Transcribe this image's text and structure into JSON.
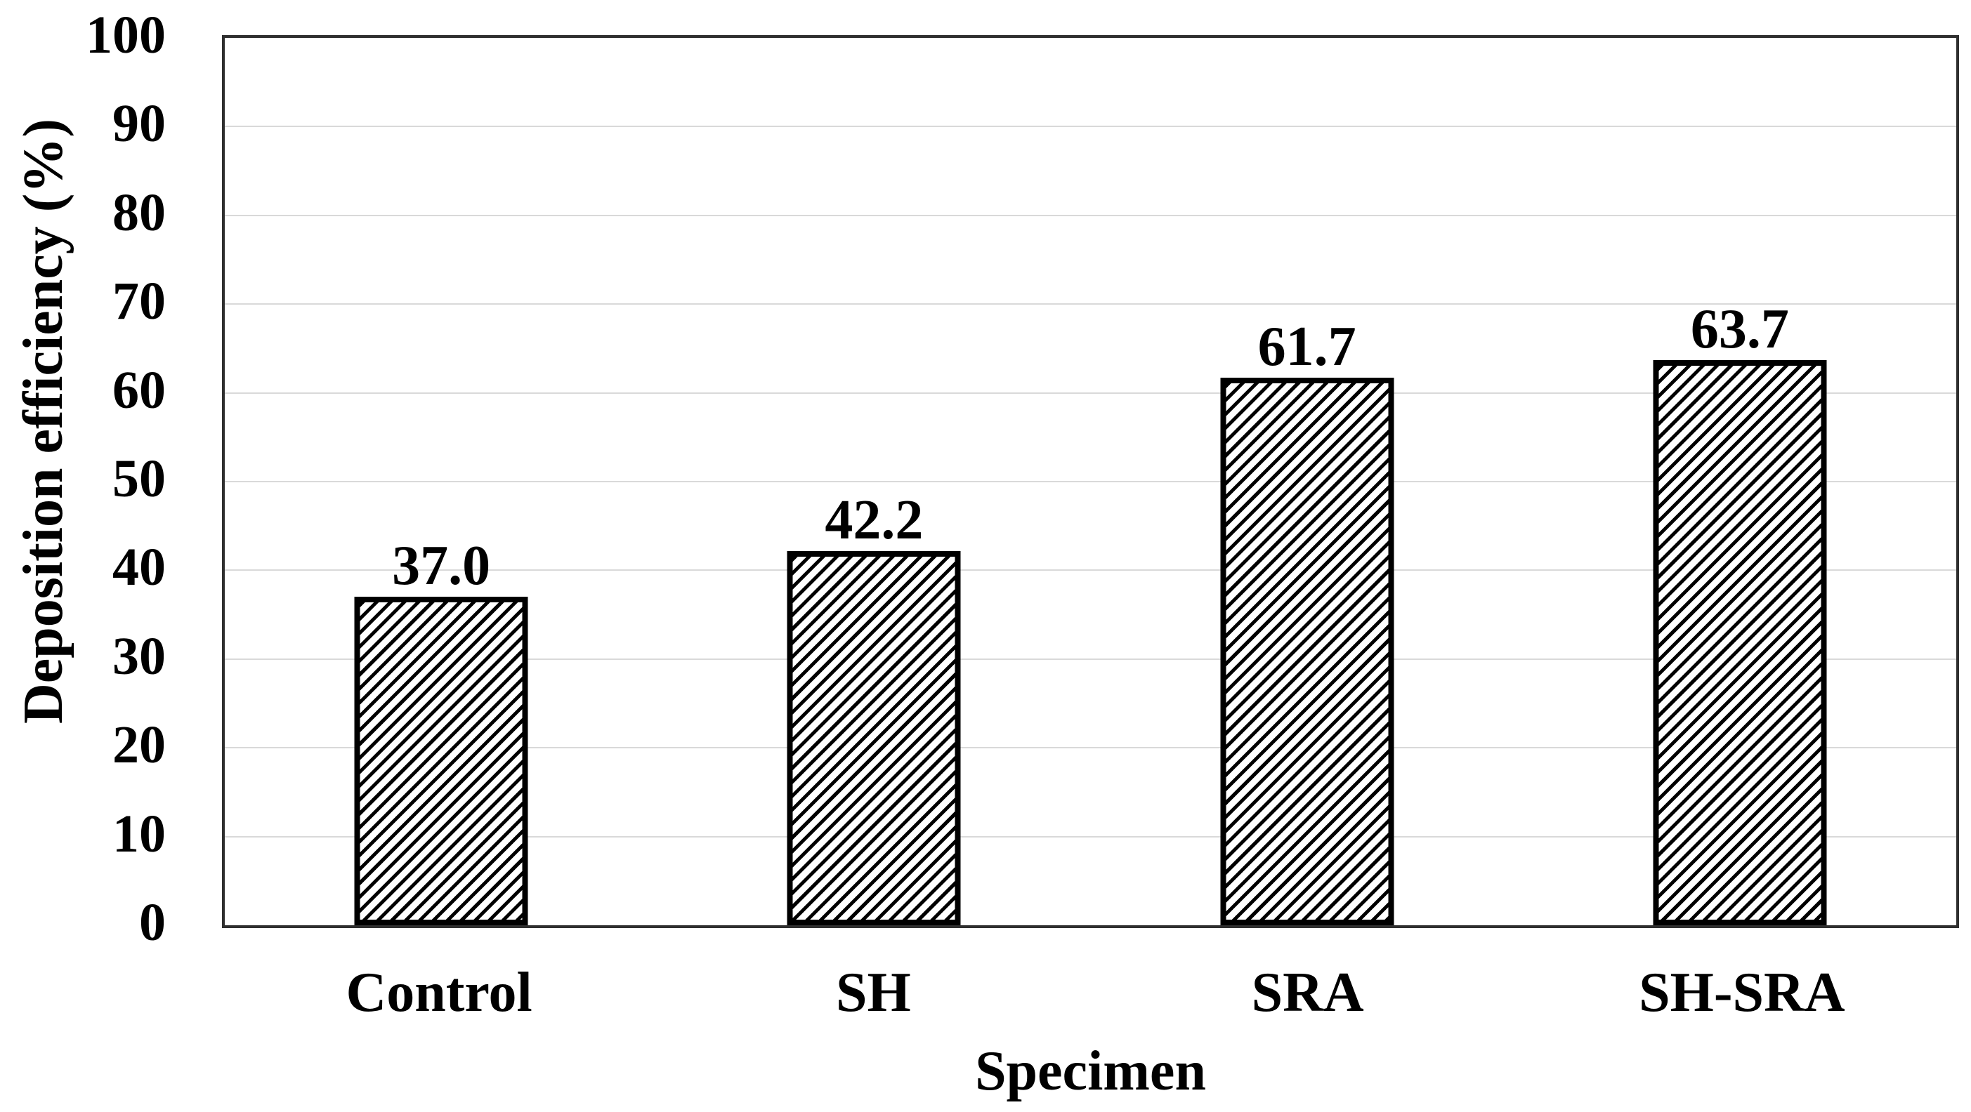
{
  "chart_data": {
    "type": "bar",
    "title": "",
    "xlabel": "Specimen",
    "ylabel": "Deposition efficiency (%)",
    "categories": [
      "Control",
      "SH",
      "SRA",
      "SH-SRA"
    ],
    "values": [
      37.0,
      42.2,
      61.7,
      63.7
    ],
    "value_labels": [
      "37.0",
      "42.2",
      "61.7",
      "63.7"
    ],
    "ylim": [
      0,
      100
    ],
    "yticks": [
      0,
      10,
      20,
      30,
      40,
      50,
      60,
      70,
      80,
      90,
      100
    ],
    "grid": true,
    "legend": "none",
    "bar_style": {
      "fill": "#ffffff",
      "hatch": "forward-diagonal",
      "hatch_color": "#000000",
      "border_color": "#000000",
      "gap_width_percent": 150
    },
    "colors": {
      "text": "#000000",
      "gridline": "#d9d9d9",
      "plot_border": "#2f2f2f",
      "background": "#ffffff"
    }
  }
}
